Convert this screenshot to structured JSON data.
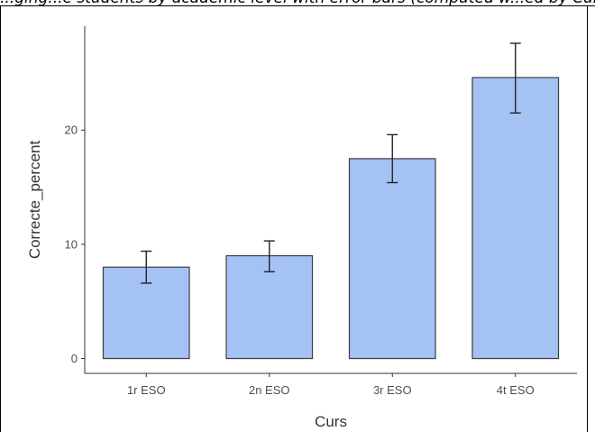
{
  "caption": "...ging...e students by academic level with error bars (computed w...ed by Curs)",
  "chart_data": {
    "type": "bar",
    "xlabel": "Curs",
    "ylabel": "Correcte_percent",
    "categories": [
      "1r ESO",
      "2n ESO",
      "3r ESO",
      "4t ESO"
    ],
    "values": [
      8.0,
      9.0,
      17.5,
      24.6
    ],
    "error_low": [
      6.6,
      7.6,
      15.4,
      21.5
    ],
    "error_high": [
      9.4,
      10.3,
      19.6,
      27.6
    ],
    "yticks": [
      0,
      10,
      20
    ],
    "ylim": [
      -1.3,
      29.1
    ],
    "grid": false,
    "legend": "none",
    "bar_color": "#a4c2f4",
    "bar_edge": "#3d3d3d",
    "error_color": "#222222"
  }
}
